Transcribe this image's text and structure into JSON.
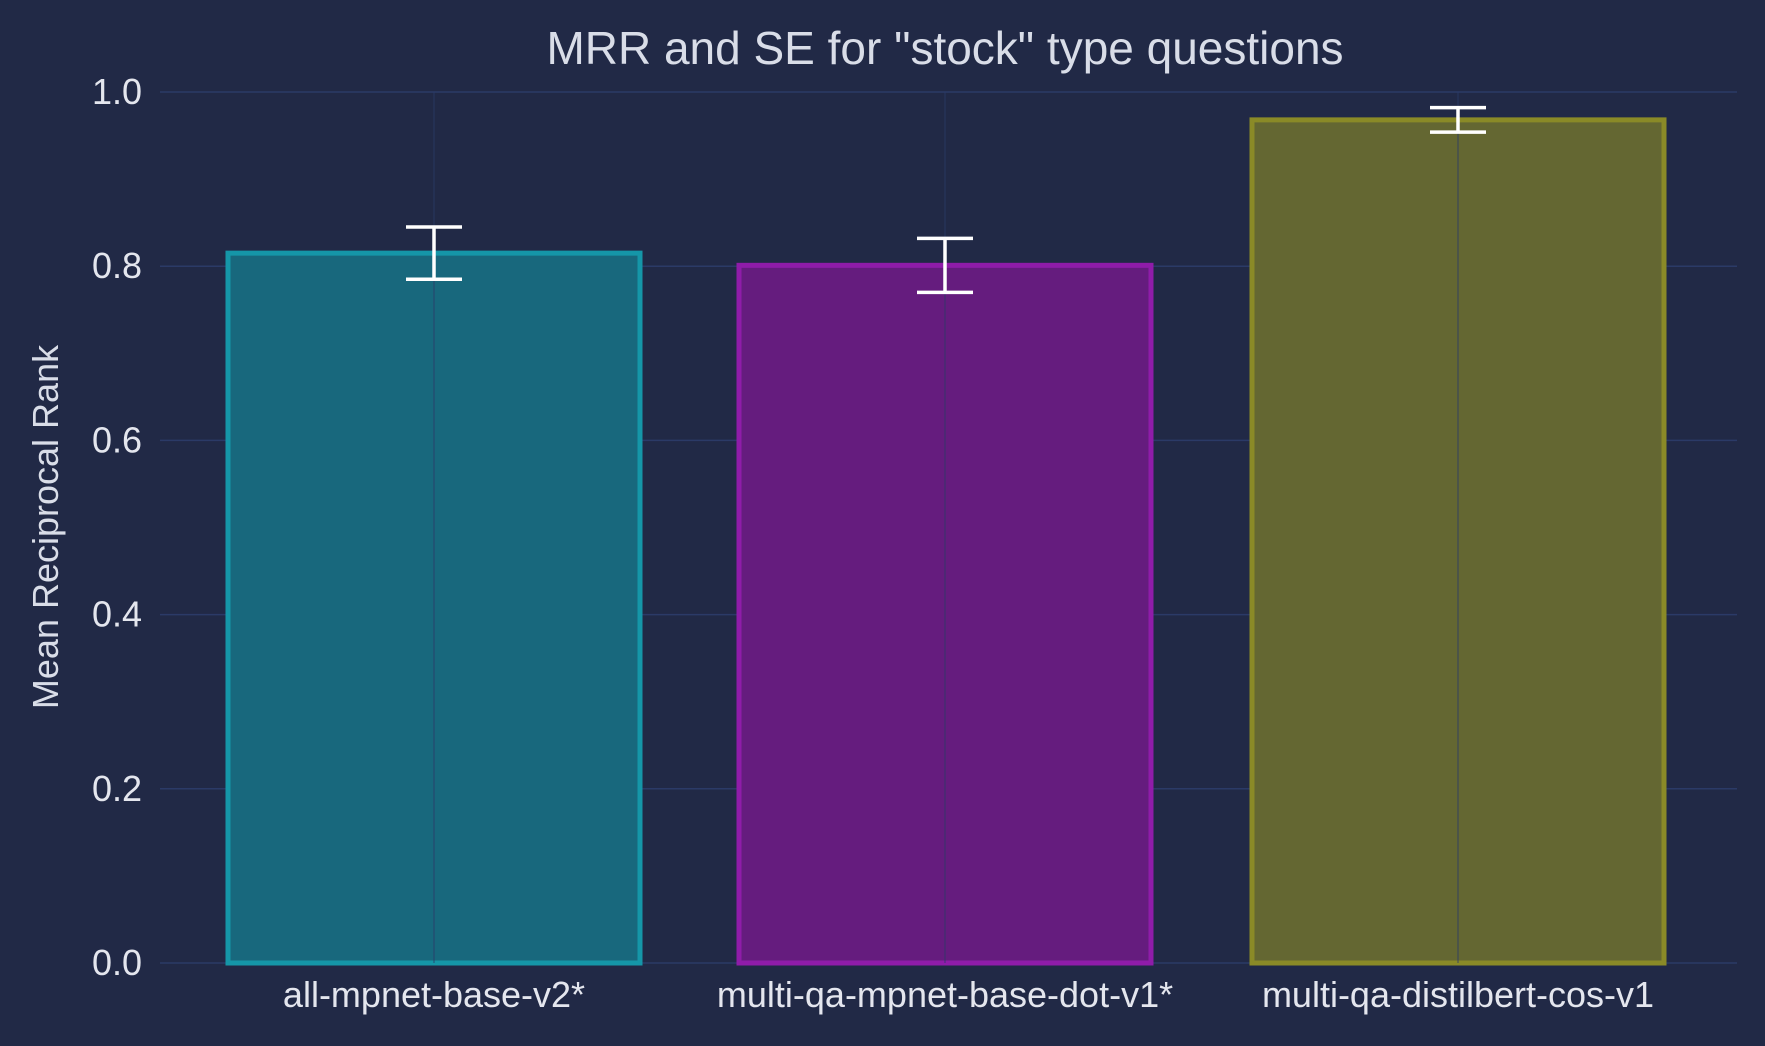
{
  "chart_data": {
    "type": "bar",
    "title": "MRR and SE for \"stock\" type questions",
    "xlabel": "",
    "ylabel": "Mean Reciprocal Rank",
    "categories": [
      "all-mpnet-base-v2*",
      "multi-qa-mpnet-base-dot-v1*",
      "multi-qa-distilbert-cos-v1"
    ],
    "values": [
      0.815,
      0.801,
      0.968
    ],
    "errors": [
      0.03,
      0.031,
      0.014
    ],
    "ylim": [
      0.0,
      1.0
    ],
    "yticks": [
      "0.0",
      "0.2",
      "0.4",
      "0.6",
      "0.8",
      "1.0"
    ],
    "grid": true,
    "legend": "none",
    "colors": {
      "fill": [
        "#18687d",
        "#651c7e",
        "#646732"
      ],
      "edge": [
        "#1596a8",
        "#8f1ca9",
        "#8a8a27"
      ],
      "error_bar": "#ffffff",
      "grid": "#2b3a67",
      "background": "#212946"
    }
  }
}
